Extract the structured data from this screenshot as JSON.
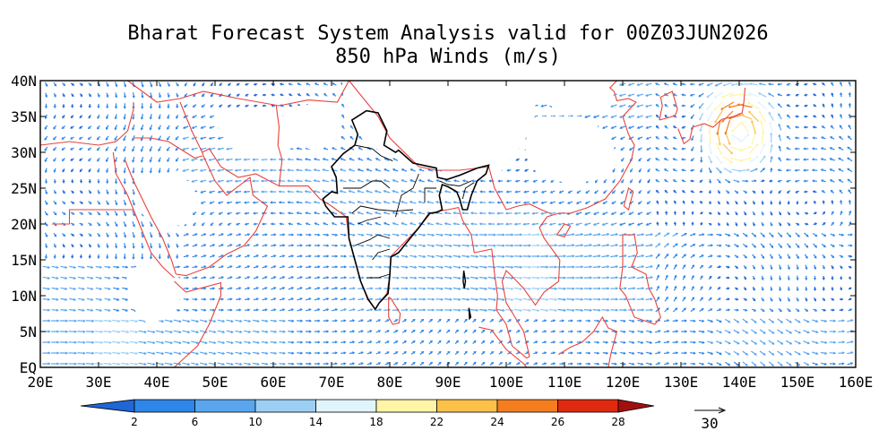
{
  "title": {
    "line1": "Bharat Forecast System Analysis valid for 00Z03JUN2026",
    "line2": "850 hPa Winds (m/s)"
  },
  "map": {
    "lon_range": [
      20,
      160
    ],
    "lat_range": [
      0,
      40
    ],
    "lon_ticks": [
      "20E",
      "30E",
      "40E",
      "50E",
      "60E",
      "70E",
      "80E",
      "90E",
      "100E",
      "110E",
      "120E",
      "130E",
      "140E",
      "150E",
      "160E"
    ],
    "lat_ticks": [
      "EQ",
      "5N",
      "10N",
      "15N",
      "20N",
      "25N",
      "30N",
      "35N",
      "40N"
    ],
    "coastline_color": "#e8423c",
    "india_border_color": "#000000",
    "vector_base_color": "#3b8fe0",
    "typhoon_center_lon_lat": [
      140,
      33
    ]
  },
  "colorbar": {
    "labels": [
      "2",
      "6",
      "10",
      "14",
      "18",
      "22",
      "24",
      "26",
      "28"
    ],
    "colors": [
      "#1f66d6",
      "#2e86e8",
      "#5aa6ee",
      "#9ccff4",
      "#dff4fb",
      "#fff5a6",
      "#fdc14a",
      "#f47d1f",
      "#e02a10",
      "#a30f0f"
    ]
  },
  "reference_vector": {
    "label": "30"
  }
}
